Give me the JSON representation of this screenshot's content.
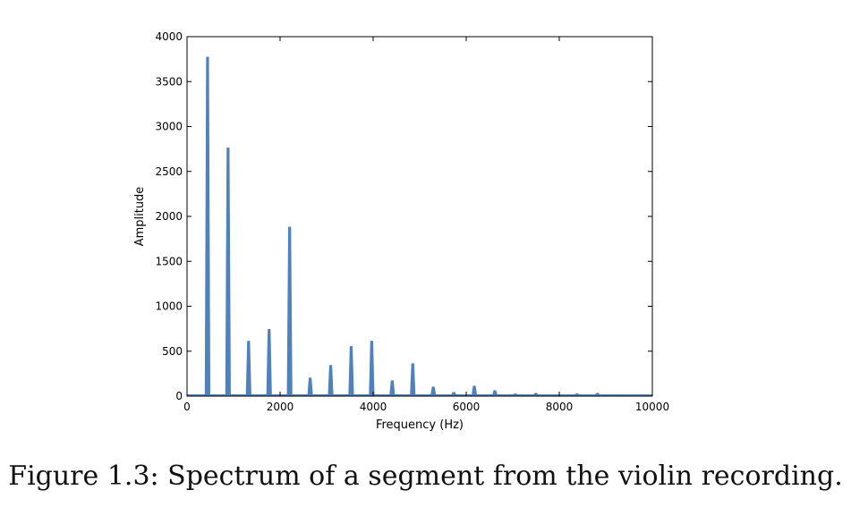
{
  "chart_data": {
    "type": "line",
    "xlabel": "Frequency (Hz)",
    "ylabel": "Amplitude",
    "xlim": [
      0,
      10000
    ],
    "ylim": [
      0,
      4000
    ],
    "xticks": [
      0,
      2000,
      4000,
      6000,
      8000,
      10000
    ],
    "xtick_labels": [
      "0",
      "2000",
      "4000",
      "6000",
      "8000",
      "10000"
    ],
    "yticks": [
      0,
      500,
      1000,
      1500,
      2000,
      2500,
      3000,
      3500,
      4000
    ],
    "ytick_labels": [
      "0",
      "500",
      "1000",
      "1500",
      "2000",
      "2500",
      "3000",
      "3500",
      "4000"
    ],
    "grid": false,
    "line_color": "#4f81bd",
    "series": [
      {
        "peaks": [
          {
            "x": 441,
            "y": 3770
          },
          {
            "x": 882,
            "y": 2760
          },
          {
            "x": 1323,
            "y": 610
          },
          {
            "x": 1764,
            "y": 740
          },
          {
            "x": 2205,
            "y": 1880
          },
          {
            "x": 2646,
            "y": 200
          },
          {
            "x": 3087,
            "y": 340
          },
          {
            "x": 3528,
            "y": 550
          },
          {
            "x": 3969,
            "y": 610
          },
          {
            "x": 4410,
            "y": 170
          },
          {
            "x": 4851,
            "y": 360
          },
          {
            "x": 5292,
            "y": 100
          },
          {
            "x": 5733,
            "y": 40
          },
          {
            "x": 6174,
            "y": 110
          },
          {
            "x": 6615,
            "y": 60
          },
          {
            "x": 7056,
            "y": 25
          },
          {
            "x": 7497,
            "y": 30
          },
          {
            "x": 7938,
            "y": 10
          },
          {
            "x": 8379,
            "y": 25
          },
          {
            "x": 8820,
            "y": 30
          },
          {
            "x": 9261,
            "y": 8
          },
          {
            "x": 9702,
            "y": 5
          }
        ]
      }
    ]
  },
  "caption": "Figure 1.3: Spectrum of a segment from the violin recording."
}
